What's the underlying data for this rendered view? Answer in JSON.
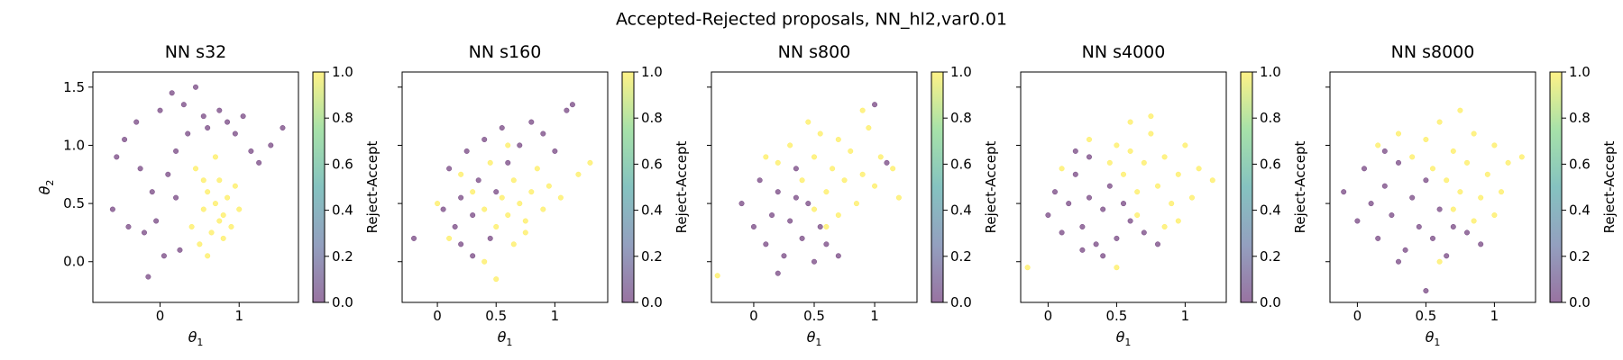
{
  "figure": {
    "title": "Accepted-Rejected proposals, NN_hl2,var0.01",
    "colormap": [
      "#440154",
      "#3b528b",
      "#21918c",
      "#5ec962",
      "#fde725"
    ],
    "point_alpha": 0.55
  },
  "chart_data": [
    {
      "type": "scatter",
      "title": "NN s32",
      "xlabel": "θ1",
      "ylabel": "θ2",
      "xlim": [
        -0.85,
        1.75
      ],
      "ylim": [
        -0.35,
        1.63
      ],
      "xticks": [
        0,
        1
      ],
      "yticks": [
        0.0,
        0.5,
        1.0,
        1.5
      ],
      "colorbar": {
        "label": "Reject-Accept",
        "range": [
          0.0,
          1.0
        ],
        "ticks": [
          "0.0",
          "0.2",
          "0.4",
          "0.6",
          "0.8",
          "1.0"
        ]
      },
      "series": [
        {
          "value": 0,
          "points": [
            [
              -0.6,
              0.45
            ],
            [
              -0.55,
              0.9
            ],
            [
              -0.45,
              1.05
            ],
            [
              -0.3,
              1.2
            ],
            [
              -0.2,
              0.25
            ],
            [
              -0.1,
              0.6
            ],
            [
              0.0,
              1.3
            ],
            [
              0.05,
              0.05
            ],
            [
              0.1,
              0.75
            ],
            [
              0.15,
              1.45
            ],
            [
              0.2,
              0.95
            ],
            [
              0.3,
              1.35
            ],
            [
              0.35,
              1.1
            ],
            [
              0.45,
              1.5
            ],
            [
              0.55,
              1.25
            ],
            [
              0.6,
              1.15
            ],
            [
              0.75,
              1.3
            ],
            [
              0.85,
              1.2
            ],
            [
              0.95,
              1.1
            ],
            [
              1.05,
              1.25
            ],
            [
              1.15,
              0.95
            ],
            [
              1.25,
              0.85
            ],
            [
              1.4,
              1.0
            ],
            [
              1.55,
              1.15
            ],
            [
              -0.15,
              -0.13
            ],
            [
              -0.4,
              0.3
            ],
            [
              0.25,
              0.1
            ],
            [
              -0.05,
              0.35
            ],
            [
              0.2,
              0.55
            ],
            [
              -0.25,
              0.8
            ]
          ]
        },
        {
          "value": 1,
          "points": [
            [
              0.4,
              0.3
            ],
            [
              0.5,
              0.15
            ],
            [
              0.55,
              0.45
            ],
            [
              0.6,
              0.6
            ],
            [
              0.65,
              0.25
            ],
            [
              0.7,
              0.5
            ],
            [
              0.75,
              0.7
            ],
            [
              0.8,
              0.4
            ],
            [
              0.85,
              0.55
            ],
            [
              0.9,
              0.3
            ],
            [
              0.95,
              0.65
            ],
            [
              1.0,
              0.45
            ],
            [
              0.6,
              0.05
            ],
            [
              0.7,
              0.9
            ],
            [
              0.45,
              0.8
            ],
            [
              0.8,
              0.2
            ],
            [
              0.55,
              0.7
            ],
            [
              0.75,
              0.35
            ]
          ]
        }
      ]
    },
    {
      "type": "scatter",
      "title": "NN s160",
      "xlabel": "θ1",
      "ylabel": "",
      "xlim": [
        -0.3,
        1.45
      ],
      "ylim": [
        -0.35,
        1.63
      ],
      "xticks": [
        0.0,
        0.5,
        1.0
      ],
      "yticks": [
        0.0,
        0.5,
        1.0,
        1.5
      ],
      "colorbar": {
        "label": "Reject-Accept",
        "range": [
          0.0,
          1.0
        ],
        "ticks": [
          "0.0",
          "0.2",
          "0.4",
          "0.6",
          "0.8",
          "1.0"
        ]
      },
      "series": [
        {
          "value": 0,
          "points": [
            [
              -0.2,
              0.2
            ],
            [
              0.05,
              0.45
            ],
            [
              0.1,
              0.8
            ],
            [
              0.15,
              0.3
            ],
            [
              0.2,
              0.55
            ],
            [
              0.25,
              0.95
            ],
            [
              0.3,
              0.4
            ],
            [
              0.35,
              0.7
            ],
            [
              0.4,
              1.05
            ],
            [
              0.45,
              0.2
            ],
            [
              0.5,
              0.6
            ],
            [
              0.55,
              1.15
            ],
            [
              0.6,
              0.85
            ],
            [
              0.7,
              1.0
            ],
            [
              0.8,
              1.2
            ],
            [
              0.9,
              1.1
            ],
            [
              1.0,
              0.95
            ],
            [
              1.1,
              1.3
            ],
            [
              1.15,
              1.35
            ],
            [
              0.2,
              0.15
            ],
            [
              0.3,
              0.05
            ]
          ]
        },
        {
          "value": 1,
          "points": [
            [
              0.0,
              0.5
            ],
            [
              0.1,
              0.2
            ],
            [
              0.2,
              0.75
            ],
            [
              0.3,
              0.6
            ],
            [
              0.4,
              0.45
            ],
            [
              0.45,
              0.85
            ],
            [
              0.5,
              0.3
            ],
            [
              0.55,
              0.55
            ],
            [
              0.6,
              0.4
            ],
            [
              0.65,
              0.7
            ],
            [
              0.7,
              0.5
            ],
            [
              0.75,
              0.25
            ],
            [
              0.8,
              0.6
            ],
            [
              0.85,
              0.8
            ],
            [
              0.9,
              0.45
            ],
            [
              0.95,
              0.65
            ],
            [
              1.05,
              0.55
            ],
            [
              1.2,
              0.75
            ],
            [
              1.3,
              0.85
            ],
            [
              0.5,
              -0.15
            ],
            [
              0.4,
              0.0
            ],
            [
              0.6,
              1.0
            ],
            [
              0.75,
              0.35
            ],
            [
              0.65,
              0.15
            ]
          ]
        }
      ]
    },
    {
      "type": "scatter",
      "title": "NN s800",
      "xlabel": "θ1",
      "ylabel": "",
      "xlim": [
        -0.35,
        1.35
      ],
      "ylim": [
        -0.35,
        1.63
      ],
      "xticks": [
        0.0,
        0.5,
        1.0
      ],
      "yticks": [
        0.0,
        0.5,
        1.0,
        1.5
      ],
      "colorbar": {
        "label": "Reject-Accept",
        "range": [
          0.0,
          1.0
        ],
        "ticks": [
          "0.0",
          "0.2",
          "0.4",
          "0.6",
          "0.8",
          "1.0"
        ]
      },
      "series": [
        {
          "value": 0,
          "points": [
            [
              -0.1,
              0.5
            ],
            [
              0.0,
              0.3
            ],
            [
              0.05,
              0.7
            ],
            [
              0.1,
              0.15
            ],
            [
              0.15,
              0.4
            ],
            [
              0.2,
              0.6
            ],
            [
              0.25,
              0.05
            ],
            [
              0.3,
              0.35
            ],
            [
              0.35,
              0.8
            ],
            [
              0.4,
              0.2
            ],
            [
              0.45,
              0.5
            ],
            [
              0.5,
              0.0
            ],
            [
              0.55,
              0.3
            ],
            [
              0.6,
              0.15
            ],
            [
              0.7,
              0.05
            ],
            [
              0.2,
              -0.1
            ],
            [
              1.0,
              1.35
            ],
            [
              1.1,
              0.85
            ],
            [
              0.35,
              0.55
            ]
          ]
        },
        {
          "value": 1,
          "points": [
            [
              -0.3,
              -0.12
            ],
            [
              0.1,
              0.9
            ],
            [
              0.2,
              0.85
            ],
            [
              0.3,
              1.0
            ],
            [
              0.4,
              0.7
            ],
            [
              0.5,
              0.9
            ],
            [
              0.55,
              1.1
            ],
            [
              0.6,
              0.6
            ],
            [
              0.65,
              0.8
            ],
            [
              0.7,
              1.05
            ],
            [
              0.75,
              0.7
            ],
            [
              0.8,
              0.95
            ],
            [
              0.85,
              0.5
            ],
            [
              0.9,
              0.75
            ],
            [
              0.95,
              1.15
            ],
            [
              1.0,
              0.65
            ],
            [
              1.05,
              0.9
            ],
            [
              1.15,
              0.8
            ],
            [
              1.2,
              0.55
            ],
            [
              0.5,
              0.45
            ],
            [
              0.6,
              0.3
            ],
            [
              0.45,
              1.2
            ],
            [
              0.7,
              0.4
            ],
            [
              0.9,
              1.3
            ]
          ]
        }
      ]
    },
    {
      "type": "scatter",
      "title": "NN s4000",
      "xlabel": "θ1",
      "ylabel": "",
      "xlim": [
        -0.2,
        1.3
      ],
      "ylim": [
        -0.35,
        1.63
      ],
      "xticks": [
        0.0,
        0.5,
        1.0
      ],
      "yticks": [
        0.0,
        0.5,
        1.0,
        1.5
      ],
      "colorbar": {
        "label": "Reject-Accept",
        "range": [
          0.0,
          1.0
        ],
        "ticks": [
          "0.0",
          "0.2",
          "0.4",
          "0.6",
          "0.8",
          "1.0"
        ]
      },
      "series": [
        {
          "value": 0,
          "points": [
            [
              0.0,
              0.4
            ],
            [
              0.05,
              0.6
            ],
            [
              0.1,
              0.25
            ],
            [
              0.15,
              0.5
            ],
            [
              0.2,
              0.75
            ],
            [
              0.25,
              0.3
            ],
            [
              0.3,
              0.55
            ],
            [
              0.35,
              0.15
            ],
            [
              0.4,
              0.45
            ],
            [
              0.45,
              0.65
            ],
            [
              0.5,
              0.2
            ],
            [
              0.55,
              0.5
            ],
            [
              0.6,
              0.35
            ],
            [
              0.7,
              0.25
            ],
            [
              0.8,
              0.15
            ],
            [
              0.3,
              0.9
            ],
            [
              0.2,
              0.95
            ],
            [
              0.4,
              0.05
            ],
            [
              0.25,
              0.1
            ]
          ]
        },
        {
          "value": 1,
          "points": [
            [
              -0.15,
              -0.05
            ],
            [
              0.1,
              0.8
            ],
            [
              0.3,
              1.05
            ],
            [
              0.45,
              0.85
            ],
            [
              0.5,
              1.0
            ],
            [
              0.55,
              0.75
            ],
            [
              0.6,
              0.95
            ],
            [
              0.65,
              0.6
            ],
            [
              0.7,
              0.85
            ],
            [
              0.75,
              1.1
            ],
            [
              0.8,
              0.65
            ],
            [
              0.85,
              0.9
            ],
            [
              0.9,
              0.5
            ],
            [
              0.95,
              0.75
            ],
            [
              1.0,
              1.0
            ],
            [
              1.05,
              0.55
            ],
            [
              1.1,
              0.8
            ],
            [
              1.2,
              0.7
            ],
            [
              0.75,
              1.25
            ],
            [
              0.65,
              0.4
            ],
            [
              0.85,
              0.3
            ],
            [
              0.5,
              -0.05
            ],
            [
              0.6,
              1.2
            ],
            [
              0.95,
              0.35
            ]
          ]
        }
      ]
    },
    {
      "type": "scatter",
      "title": "NN s8000",
      "xlabel": "θ1",
      "ylabel": "",
      "xlim": [
        -0.2,
        1.3
      ],
      "ylim": [
        -0.35,
        1.63
      ],
      "xticks": [
        0.0,
        0.5,
        1.0
      ],
      "yticks": [
        0.0,
        0.5,
        1.0,
        1.5
      ],
      "colorbar": {
        "label": "Reject-Accept",
        "range": [
          0.0,
          1.0
        ],
        "ticks": [
          "0.0",
          "0.2",
          "0.4",
          "0.6",
          "0.8",
          "1.0"
        ]
      },
      "series": [
        {
          "value": 0,
          "points": [
            [
              -0.1,
              0.6
            ],
            [
              0.0,
              0.35
            ],
            [
              0.05,
              0.8
            ],
            [
              0.1,
              0.5
            ],
            [
              0.15,
              0.2
            ],
            [
              0.2,
              0.65
            ],
            [
              0.25,
              0.4
            ],
            [
              0.3,
              0.85
            ],
            [
              0.35,
              0.1
            ],
            [
              0.4,
              0.55
            ],
            [
              0.45,
              0.3
            ],
            [
              0.5,
              0.7
            ],
            [
              0.55,
              0.2
            ],
            [
              0.6,
              0.45
            ],
            [
              0.65,
              0.05
            ],
            [
              0.7,
              0.3
            ],
            [
              0.8,
              0.25
            ],
            [
              0.9,
              0.15
            ],
            [
              0.5,
              -0.25
            ],
            [
              0.3,
              0.0
            ],
            [
              0.2,
              0.95
            ]
          ]
        },
        {
          "value": 1,
          "points": [
            [
              0.15,
              1.0
            ],
            [
              0.3,
              1.1
            ],
            [
              0.4,
              0.9
            ],
            [
              0.5,
              1.05
            ],
            [
              0.55,
              0.8
            ],
            [
              0.6,
              1.2
            ],
            [
              0.65,
              0.7
            ],
            [
              0.7,
              0.95
            ],
            [
              0.75,
              0.6
            ],
            [
              0.8,
              0.85
            ],
            [
              0.85,
              1.1
            ],
            [
              0.9,
              0.55
            ],
            [
              0.95,
              0.75
            ],
            [
              1.0,
              1.0
            ],
            [
              1.05,
              0.6
            ],
            [
              1.1,
              0.85
            ],
            [
              1.2,
              0.9
            ],
            [
              0.7,
              0.45
            ],
            [
              0.85,
              0.35
            ],
            [
              0.6,
              0.0
            ],
            [
              0.75,
              1.3
            ],
            [
              1.0,
              0.4
            ]
          ]
        }
      ]
    }
  ]
}
